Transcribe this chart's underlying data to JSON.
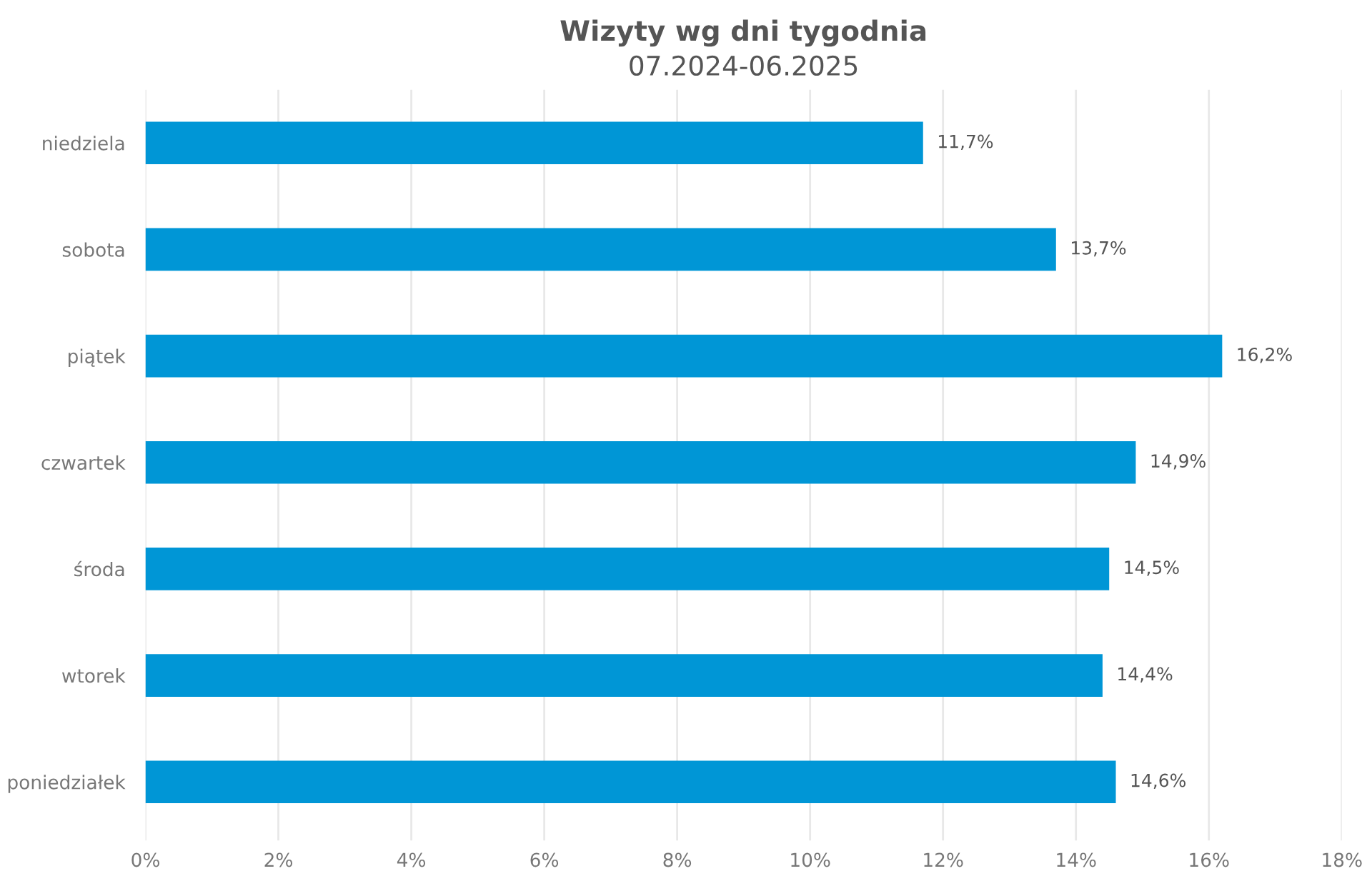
{
  "chart_data": {
    "type": "bar",
    "orientation": "horizontal",
    "title": "Wizyty wg dni tygodnia",
    "subtitle": "07.2024-06.2025",
    "categories": [
      "niedziela",
      "sobota",
      "piątek",
      "czwartek",
      "środa",
      "wtorek",
      "poniedziałek"
    ],
    "values": [
      11.7,
      13.7,
      16.2,
      14.9,
      14.5,
      14.4,
      14.6
    ],
    "value_labels": [
      "11,7%",
      "13,7%",
      "16,2%",
      "14,9%",
      "14,5%",
      "14,4%",
      "14,6%"
    ],
    "color": "#0096d6",
    "xlim": [
      0,
      18
    ],
    "xticks": [
      {
        "value": 0,
        "label": "0%"
      },
      {
        "value": 2,
        "label": "2%"
      },
      {
        "value": 4,
        "label": "4%"
      },
      {
        "value": 6,
        "label": "6%"
      },
      {
        "value": 8,
        "label": "8%"
      },
      {
        "value": 10,
        "label": "10%"
      },
      {
        "value": 12,
        "label": "12%"
      },
      {
        "value": 14,
        "label": "14%"
      },
      {
        "value": 16,
        "label": "16%"
      },
      {
        "value": 18,
        "label": "18%"
      }
    ],
    "grid": "x"
  }
}
